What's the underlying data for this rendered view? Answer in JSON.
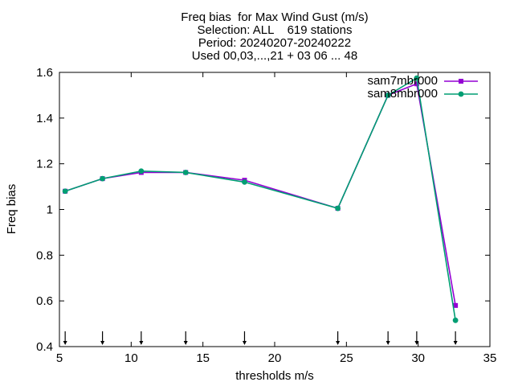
{
  "chart_data": {
    "type": "line",
    "title_lines": [
      "Freq bias  for Max Wind Gust (m/s)",
      "Selection: ALL    619 stations",
      "Period: 20240207-20240222",
      "Used 00,03,...,21 + 03 06 ... 48"
    ],
    "xlabel": "thresholds m/s",
    "ylabel": "Freq bias",
    "xlim": [
      5,
      35
    ],
    "ylim": [
      0.4,
      1.6
    ],
    "xticks": [
      5,
      10,
      15,
      20,
      25,
      30,
      35
    ],
    "yticks": [
      0.4,
      0.6,
      0.8,
      1,
      1.2,
      1.4,
      1.6
    ],
    "xtick_labels": [
      "5",
      "10",
      "15",
      "20",
      "25",
      "30",
      "35"
    ],
    "ytick_labels": [
      "0.4",
      "0.6",
      "0.8",
      "1",
      "1.2",
      "1.4",
      "1.6"
    ],
    "legend_position": "top-right",
    "threshold_markers": [
      5.4,
      8.0,
      10.7,
      13.8,
      17.9,
      24.4,
      27.9,
      29.9,
      32.6
    ],
    "series": [
      {
        "name": "sam7mbr000",
        "color": "#9400d3",
        "marker": "square",
        "x": [
          5.4,
          8.0,
          10.7,
          13.8,
          17.9,
          24.4,
          27.9,
          29.9,
          32.6
        ],
        "y": [
          1.08,
          1.135,
          1.162,
          1.162,
          1.128,
          1.005,
          1.5,
          1.55,
          0.58
        ]
      },
      {
        "name": "sam8mbr000",
        "color": "#009e73",
        "marker": "circle",
        "x": [
          5.4,
          8.0,
          10.7,
          13.8,
          17.9,
          24.4,
          27.9,
          29.9,
          32.6
        ],
        "y": [
          1.08,
          1.135,
          1.168,
          1.162,
          1.12,
          1.005,
          1.5,
          1.575,
          0.515
        ]
      }
    ]
  }
}
